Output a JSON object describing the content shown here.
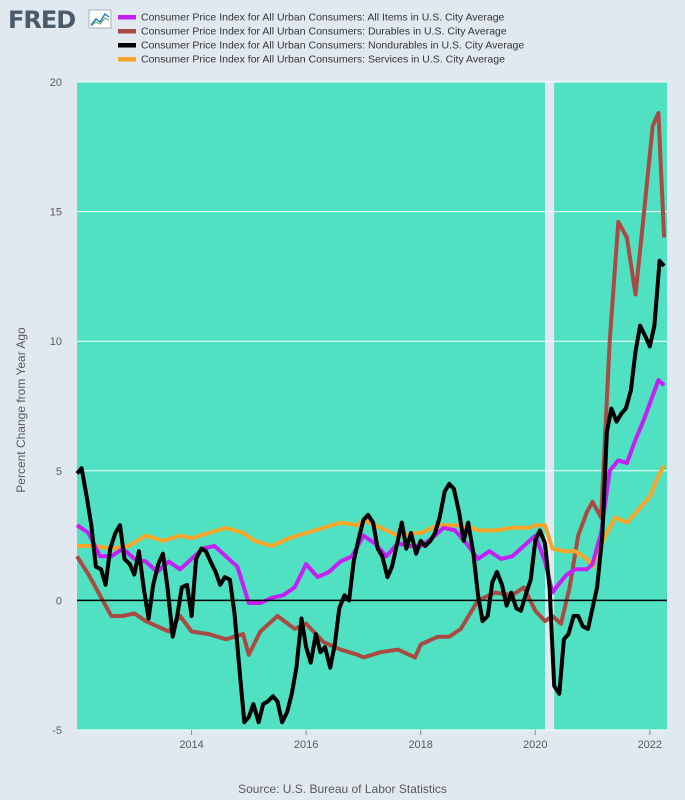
{
  "logo": {
    "text": "FRED"
  },
  "source": "Source: U.S. Bureau of Labor Statistics",
  "colors": {
    "background": "#e1e9f0",
    "plot_area": "#4fe1c2",
    "recession": "#e1e9f0",
    "grid": "#ffffff",
    "zero_line": "#000000",
    "text": "#595959"
  },
  "chart_data": {
    "type": "line",
    "title": "",
    "xlabel": "",
    "ylabel": "Percent Change from Year Ago",
    "xlim": [
      2012.0,
      2022.3
    ],
    "ylim": [
      -5,
      20
    ],
    "x_ticks": [
      2014,
      2016,
      2018,
      2020,
      2022
    ],
    "x_tick_labels": [
      "2014",
      "2016",
      "2018",
      "2020",
      "2022"
    ],
    "y_ticks": [
      -5,
      0,
      5,
      10,
      15,
      20
    ],
    "y_tick_labels": [
      "-5",
      "0",
      "5",
      "10",
      "15",
      "20"
    ],
    "grid": true,
    "zero_line": true,
    "legend_position": "top",
    "recession_shading": {
      "start": 2020.17,
      "end": 2020.33
    },
    "series": [
      {
        "name": "Consumer Price Index for All Urban Consumers: Durables in U.S. City Average",
        "color": "#a94a43",
        "x": [
          2012.0,
          2012.2,
          2012.4,
          2012.6,
          2012.8,
          2013.0,
          2013.2,
          2013.4,
          2013.6,
          2013.8,
          2014.0,
          2014.3,
          2014.6,
          2014.9,
          2015.0,
          2015.2,
          2015.5,
          2015.8,
          2016.0,
          2016.3,
          2016.6,
          2016.9,
          2017.0,
          2017.3,
          2017.6,
          2017.9,
          2018.0,
          2018.3,
          2018.5,
          2018.7,
          2019.0,
          2019.3,
          2019.6,
          2019.8,
          2020.0,
          2020.17,
          2020.3,
          2020.45,
          2020.6,
          2020.75,
          2020.9,
          2021.0,
          2021.15,
          2021.3,
          2021.45,
          2021.6,
          2021.75,
          2021.9,
          2022.05,
          2022.15,
          2022.25
        ],
        "y": [
          1.7,
          1.0,
          0.2,
          -0.6,
          -0.6,
          -0.5,
          -0.8,
          -1.0,
          -1.2,
          -0.6,
          -1.2,
          -1.3,
          -1.5,
          -1.3,
          -2.1,
          -1.2,
          -0.6,
          -1.1,
          -0.9,
          -1.6,
          -1.9,
          -2.1,
          -2.2,
          -2.0,
          -1.9,
          -2.2,
          -1.7,
          -1.4,
          -1.4,
          -1.1,
          0.0,
          0.3,
          0.2,
          0.5,
          -0.4,
          -0.8,
          -0.6,
          -0.9,
          0.5,
          2.5,
          3.4,
          3.8,
          3.2,
          10.0,
          14.6,
          14.0,
          11.8,
          15.0,
          18.3,
          18.8,
          14.0
        ]
      },
      {
        "name": "Consumer Price Index for All Urban Consumers: Services in U.S. City Average",
        "color": "#f7a52a",
        "x": [
          2012.0,
          2012.3,
          2012.6,
          2012.9,
          2013.2,
          2013.5,
          2013.8,
          2014.0,
          2014.3,
          2014.6,
          2014.9,
          2015.1,
          2015.4,
          2015.7,
          2016.0,
          2016.3,
          2016.6,
          2016.9,
          2017.0,
          2017.3,
          2017.6,
          2017.9,
          2018.0,
          2018.3,
          2018.6,
          2018.9,
          2019.0,
          2019.3,
          2019.6,
          2019.9,
          2020.0,
          2020.17,
          2020.3,
          2020.5,
          2020.7,
          2020.9,
          2021.0,
          2021.2,
          2021.4,
          2021.6,
          2021.8,
          2022.0,
          2022.15,
          2022.25
        ],
        "y": [
          2.1,
          2.1,
          2.0,
          2.1,
          2.5,
          2.3,
          2.5,
          2.4,
          2.6,
          2.8,
          2.6,
          2.3,
          2.1,
          2.4,
          2.6,
          2.8,
          3.0,
          2.9,
          3.1,
          2.8,
          2.5,
          2.6,
          2.6,
          2.9,
          2.9,
          2.8,
          2.7,
          2.7,
          2.8,
          2.8,
          2.9,
          2.9,
          2.0,
          1.9,
          1.9,
          1.6,
          1.3,
          2.4,
          3.2,
          3.0,
          3.5,
          4.0,
          4.8,
          5.2
        ]
      },
      {
        "name": "Consumer Price Index for All Urban Consumers: All Items in U.S. City Average",
        "color": "#c41ff5",
        "x": [
          2012.0,
          2012.2,
          2012.4,
          2012.6,
          2012.8,
          2013.0,
          2013.2,
          2013.4,
          2013.6,
          2013.8,
          2014.0,
          2014.2,
          2014.4,
          2014.6,
          2014.8,
          2015.0,
          2015.2,
          2015.4,
          2015.6,
          2015.8,
          2016.0,
          2016.2,
          2016.4,
          2016.6,
          2016.8,
          2017.0,
          2017.2,
          2017.4,
          2017.6,
          2017.8,
          2018.0,
          2018.2,
          2018.4,
          2018.6,
          2018.8,
          2019.0,
          2019.2,
          2019.4,
          2019.6,
          2019.8,
          2020.0,
          2020.17,
          2020.3,
          2020.4,
          2020.55,
          2020.7,
          2020.9,
          2021.0,
          2021.15,
          2021.3,
          2021.45,
          2021.6,
          2021.75,
          2021.9,
          2022.05,
          2022.15,
          2022.25
        ],
        "y": [
          2.9,
          2.6,
          1.7,
          1.7,
          2.0,
          1.6,
          1.5,
          1.1,
          1.5,
          1.2,
          1.6,
          2.0,
          2.1,
          1.7,
          1.3,
          -0.1,
          -0.1,
          0.1,
          0.2,
          0.5,
          1.4,
          0.9,
          1.1,
          1.5,
          1.7,
          2.5,
          2.2,
          1.7,
          2.2,
          2.1,
          2.1,
          2.4,
          2.8,
          2.7,
          2.2,
          1.6,
          1.9,
          1.6,
          1.7,
          2.1,
          2.5,
          1.5,
          0.3,
          0.6,
          1.0,
          1.2,
          1.2,
          1.4,
          2.6,
          5.0,
          5.4,
          5.3,
          6.2,
          7.0,
          7.9,
          8.5,
          8.3
        ]
      },
      {
        "name": "Consumer Price Index for All Urban Consumers: Nondurables in U.S. City Average",
        "color": "#000000",
        "x": [
          2012.0,
          2012.08,
          2012.17,
          2012.25,
          2012.33,
          2012.42,
          2012.5,
          2012.58,
          2012.67,
          2012.75,
          2012.83,
          2012.92,
          2013.0,
          2013.08,
          2013.17,
          2013.25,
          2013.33,
          2013.42,
          2013.5,
          2013.58,
          2013.67,
          2013.75,
          2013.83,
          2013.92,
          2014.0,
          2014.08,
          2014.17,
          2014.25,
          2014.33,
          2014.42,
          2014.5,
          2014.58,
          2014.67,
          2014.75,
          2014.83,
          2014.92,
          2015.0,
          2015.08,
          2015.17,
          2015.25,
          2015.33,
          2015.42,
          2015.5,
          2015.58,
          2015.67,
          2015.75,
          2015.83,
          2015.92,
          2016.0,
          2016.08,
          2016.17,
          2016.25,
          2016.33,
          2016.42,
          2016.5,
          2016.58,
          2016.67,
          2016.75,
          2016.83,
          2016.92,
          2017.0,
          2017.08,
          2017.17,
          2017.25,
          2017.33,
          2017.42,
          2017.5,
          2017.58,
          2017.67,
          2017.75,
          2017.83,
          2017.92,
          2018.0,
          2018.08,
          2018.17,
          2018.25,
          2018.33,
          2018.42,
          2018.5,
          2018.58,
          2018.67,
          2018.75,
          2018.83,
          2018.92,
          2019.0,
          2019.08,
          2019.17,
          2019.25,
          2019.33,
          2019.42,
          2019.5,
          2019.58,
          2019.67,
          2019.75,
          2019.83,
          2019.92,
          2020.0,
          2020.08,
          2020.17,
          2020.25,
          2020.33,
          2020.42,
          2020.5,
          2020.58,
          2020.67,
          2020.75,
          2020.83,
          2020.92,
          2021.0,
          2021.08,
          2021.17,
          2021.25,
          2021.33,
          2021.42,
          2021.5,
          2021.58,
          2021.67,
          2021.75,
          2021.83,
          2021.92,
          2022.0,
          2022.08,
          2022.17,
          2022.25
        ],
        "y": [
          4.9,
          5.1,
          4.0,
          2.9,
          1.3,
          1.2,
          0.6,
          2.0,
          2.6,
          2.9,
          1.6,
          1.4,
          1.0,
          1.9,
          0.4,
          -0.7,
          0.6,
          1.4,
          1.8,
          0.5,
          -1.4,
          -0.6,
          0.5,
          0.6,
          -0.6,
          1.6,
          2.0,
          1.9,
          1.5,
          1.1,
          0.6,
          0.9,
          0.8,
          -0.5,
          -2.5,
          -4.7,
          -4.5,
          -4.0,
          -4.7,
          -4.0,
          -3.9,
          -3.7,
          -3.9,
          -4.7,
          -4.3,
          -3.6,
          -2.6,
          -0.7,
          -1.8,
          -2.4,
          -1.3,
          -2.0,
          -1.8,
          -2.6,
          -1.7,
          -0.3,
          0.2,
          0.0,
          1.5,
          2.4,
          3.1,
          3.3,
          3.0,
          2.0,
          1.7,
          0.9,
          1.3,
          2.1,
          3.0,
          2.0,
          2.6,
          1.8,
          2.3,
          2.1,
          2.3,
          2.6,
          3.2,
          4.2,
          4.5,
          4.3,
          3.4,
          2.3,
          3.0,
          1.8,
          0.2,
          -0.8,
          -0.6,
          0.7,
          1.1,
          0.6,
          -0.2,
          0.3,
          -0.3,
          -0.4,
          0.2,
          0.8,
          2.3,
          2.7,
          2.2,
          0.5,
          -3.3,
          -3.6,
          -1.5,
          -1.3,
          -0.6,
          -0.6,
          -1.0,
          -1.1,
          -0.3,
          0.5,
          2.5,
          6.5,
          7.4,
          6.9,
          7.2,
          7.4,
          8.1,
          9.6,
          10.6,
          10.2,
          9.8,
          10.6,
          13.1,
          12.9
        ]
      }
    ],
    "legend_order": [
      2,
      0,
      3,
      1
    ]
  }
}
